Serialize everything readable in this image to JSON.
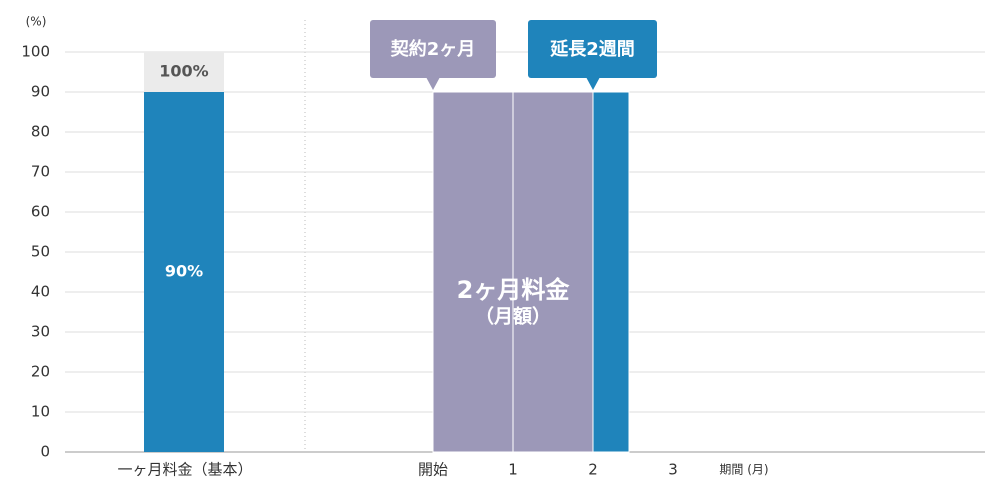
{
  "chart_data": {
    "type": "bar",
    "y_unit_label": "(%)",
    "ylim": [
      0,
      100
    ],
    "yticks": [
      0,
      10,
      20,
      30,
      40,
      50,
      60,
      70,
      80,
      90,
      100
    ],
    "grid": true,
    "basic": {
      "category": "一ヶ月料金（基本）",
      "value": 90,
      "value_label": "90%",
      "color": "#1f84bb",
      "total": {
        "value": 100,
        "label": "100%",
        "color": "#ebebeb"
      }
    },
    "xlim": [
      -1.6,
      6.9
    ],
    "xticks": [
      {
        "value": 0,
        "label": "開始"
      },
      1,
      2,
      3
    ],
    "xlabel": "期間 (月)",
    "periods": [
      {
        "x": [
          0,
          1
        ],
        "value": 90,
        "color": "#9c98b8"
      },
      {
        "x": [
          1,
          2
        ],
        "value": 90,
        "color": "#9c98b8"
      },
      {
        "x": [
          2,
          2.45
        ],
        "value": 90,
        "color": "#1f84bb"
      }
    ],
    "annotations": [
      {
        "text": "契約2ヶ月",
        "x": 0,
        "color": "#9c98b8"
      },
      {
        "text": "延長2週間",
        "x": 2,
        "color": "#1f84bb"
      }
    ],
    "center_label": [
      "2ヶ月料金",
      "（月額）"
    ]
  }
}
